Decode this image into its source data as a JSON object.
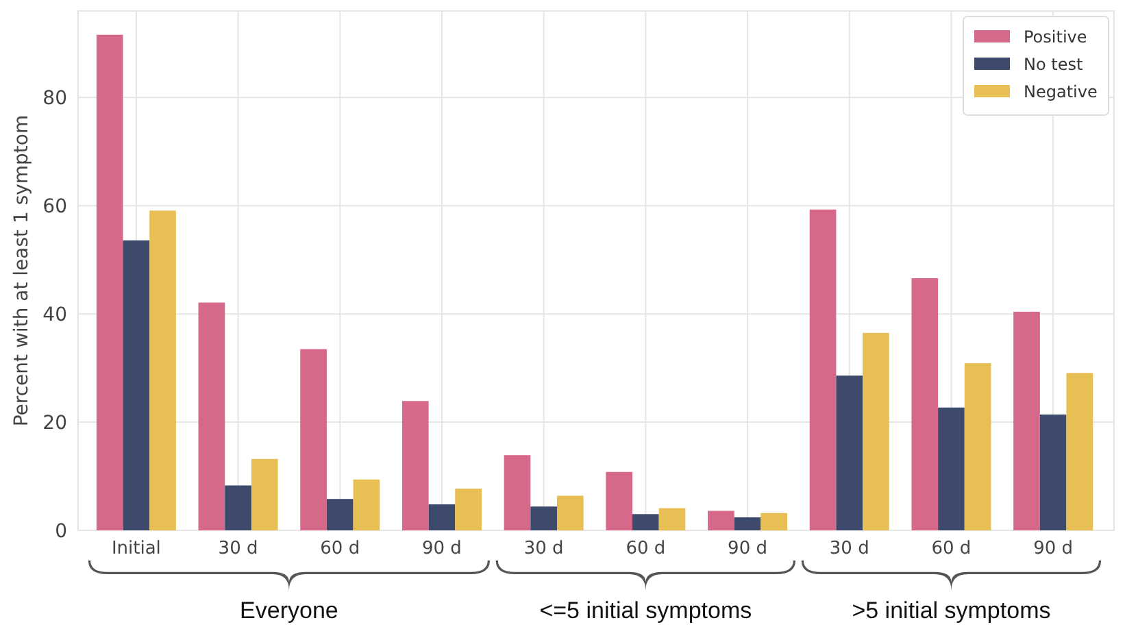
{
  "chart_data": {
    "type": "bar",
    "ylabel": "Percent with at least 1 symptom",
    "categories": [
      "Initial",
      "30 d",
      "60 d",
      "90 d",
      "30 d",
      "60 d",
      "90 d",
      "30 d",
      "60 d",
      "90 d"
    ],
    "series": [
      {
        "name": "Positive",
        "color": "#d6698a",
        "values": [
          91.6,
          42.1,
          33.5,
          23.9,
          13.9,
          10.8,
          3.6,
          59.3,
          46.6,
          40.4
        ]
      },
      {
        "name": "No test",
        "color": "#3d4a6b",
        "values": [
          53.6,
          8.3,
          5.8,
          4.8,
          4.4,
          3.0,
          2.4,
          28.6,
          22.7,
          21.4
        ]
      },
      {
        "name": "Negative",
        "color": "#e8bf55",
        "values": [
          59.1,
          13.2,
          9.4,
          7.7,
          6.4,
          4.1,
          3.2,
          36.5,
          30.9,
          29.1
        ]
      }
    ],
    "ylim": [
      0,
      96
    ],
    "yticks": [
      0,
      20,
      40,
      60,
      80
    ],
    "grid": true,
    "legend": "top right",
    "annotations": [
      "Everyone",
      "<=5 initial symptoms",
      ">5 initial symptoms"
    ]
  }
}
